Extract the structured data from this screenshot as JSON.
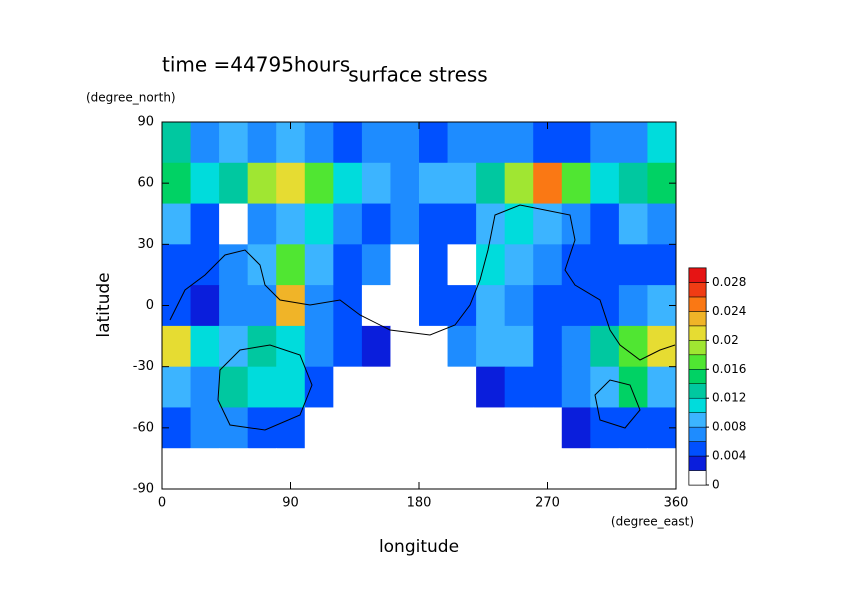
{
  "chart_data": {
    "type": "contour",
    "title": "surface stress",
    "subtitle": "time =44795hours",
    "y_label": "latitude",
    "y_unit": "(degree_north)",
    "x_label": "longitude",
    "x_unit": "(degree_east)",
    "xlim": [
      0,
      360
    ],
    "xticks": [
      0,
      90,
      180,
      270,
      360
    ],
    "ylim": [
      -90,
      90
    ],
    "yticks": [
      -90,
      -60,
      -30,
      0,
      30,
      60,
      90
    ],
    "x": [
      10,
      30,
      50,
      70,
      90,
      110,
      130,
      150,
      170,
      190,
      210,
      230,
      250,
      270,
      290,
      310,
      330,
      350
    ],
    "y": [
      80,
      60,
      40,
      20,
      0,
      -20,
      -40,
      -60,
      -80
    ],
    "z": [
      [
        0.012,
        0.006,
        0.008,
        0.006,
        0.008,
        0.006,
        0.004,
        0.006,
        0.006,
        0.004,
        0.006,
        0.006,
        0.006,
        0.004,
        0.004,
        0.006,
        0.006,
        0.01
      ],
      [
        0.014,
        0.01,
        0.012,
        0.018,
        0.02,
        0.016,
        0.01,
        0.008,
        0.006,
        0.008,
        0.008,
        0.012,
        0.018,
        0.024,
        0.016,
        0.01,
        0.012,
        0.014
      ],
      [
        0.008,
        0.004,
        0,
        0.006,
        0.008,
        0.01,
        0.006,
        0.004,
        0.006,
        0.004,
        0.004,
        0.008,
        0.01,
        0.008,
        0.006,
        0.004,
        0.008,
        0.006
      ],
      [
        0.004,
        0.004,
        0.006,
        0.008,
        0.016,
        0.008,
        0.004,
        0.006,
        0,
        0.004,
        0,
        0.01,
        0.008,
        0.006,
        0.004,
        0.004,
        0.004,
        0.004
      ],
      [
        0.004,
        0.002,
        0.006,
        0.006,
        0.022,
        0.006,
        0.004,
        0,
        0,
        0.004,
        0.004,
        0.008,
        0.006,
        0.004,
        0.004,
        0.004,
        0.006,
        0.008
      ],
      [
        0.02,
        0.01,
        0.008,
        0.012,
        0.01,
        0.006,
        0.004,
        0.002,
        0,
        0,
        0.006,
        0.008,
        0.008,
        0.004,
        0.006,
        0.012,
        0.016,
        0.02
      ],
      [
        0.008,
        0.006,
        0.012,
        0.01,
        0.01,
        0.004,
        0,
        0,
        0,
        0,
        0,
        0.002,
        0.004,
        0.004,
        0.006,
        0.008,
        0.014,
        0.008
      ],
      [
        0.004,
        0.006,
        0.006,
        0.004,
        0.004,
        0,
        0,
        0,
        0,
        0,
        0,
        0,
        0,
        0,
        0.002,
        0.004,
        0.004,
        0.004
      ],
      [
        0,
        0,
        0,
        0,
        0,
        0,
        0,
        0,
        0,
        0,
        0,
        0,
        0,
        0,
        0,
        0,
        0,
        0
      ]
    ],
    "levels": [
      0,
      0.002,
      0.004,
      0.006,
      0.008,
      0.01,
      0.012,
      0.014,
      0.016,
      0.018,
      0.02,
      0.022,
      0.024,
      0.026,
      0.028,
      0.03
    ],
    "colors": [
      "#ffffff",
      "#0a1edc",
      "#0050ff",
      "#1e8cff",
      "#3cb4ff",
      "#00dcdc",
      "#00c8a0",
      "#00d264",
      "#50e632",
      "#a0e632",
      "#e6dc32",
      "#f0b428",
      "#fa7814",
      "#f03c14",
      "#e61414"
    ],
    "colorbar_ticks": [
      0,
      0.004,
      0.008,
      0.012,
      0.016,
      0.02,
      0.024,
      0.028
    ]
  }
}
